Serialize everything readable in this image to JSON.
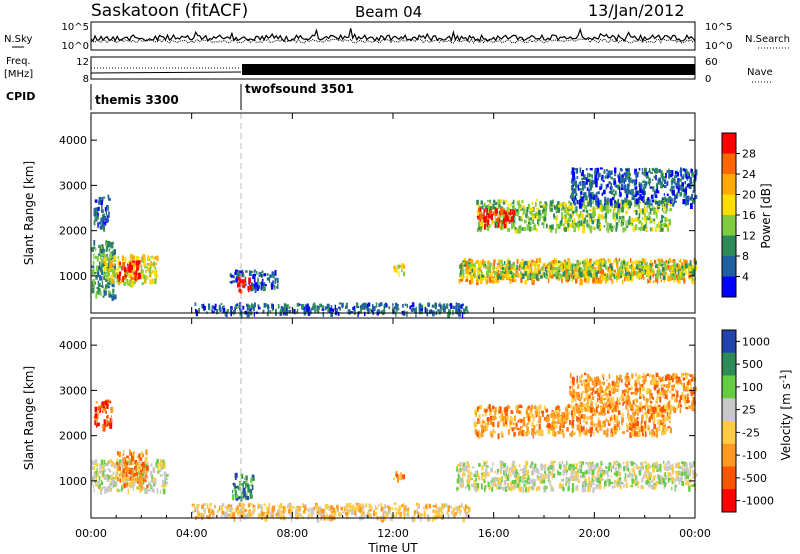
{
  "header": {
    "station": "Saskatoon (fitACF)",
    "beam": "Beam 04",
    "date": "13/Jan/2012"
  },
  "side_labels": {
    "nsky": "N.Sky",
    "freq": "Freq.",
    "freq_unit": "[MHz]",
    "cpid": "CPID",
    "nsearch": "N.Search",
    "nave": "Nave"
  },
  "chart_data": [
    {
      "type": "line",
      "panel": "noise",
      "ytick_labels": [
        "10^5",
        "10^0"
      ],
      "right_ytick_labels": [
        "10^5",
        "10^0"
      ],
      "x_ticks": [
        "00:00",
        "04:00",
        "08:00",
        "12:00",
        "16:00",
        "20:00",
        "00:00"
      ]
    },
    {
      "type": "line",
      "panel": "frequency",
      "ytick_labels": [
        "12",
        "8"
      ],
      "right_ytick_labels": [
        "60",
        "0"
      ],
      "series": [
        {
          "name": "Freq.",
          "x": [
            0,
            6,
            6.01,
            24
          ],
          "y": [
            10.0,
            10.2,
            11.0,
            11.0
          ]
        },
        {
          "name": "Nave",
          "x": [
            0,
            6,
            6.01,
            24
          ],
          "y": [
            22,
            22,
            48,
            48
          ]
        }
      ]
    },
    {
      "type": "table",
      "panel": "cpid",
      "segments": [
        {
          "start": 0.0,
          "end": 6.0,
          "label": "themis 3300"
        },
        {
          "start": 6.0,
          "end": 24.0,
          "label": "twofsound 3501"
        }
      ]
    },
    {
      "type": "heatmap",
      "panel": "power",
      "ylabel": "Slant Range [km]",
      "xlabel": "Time UT",
      "yticks": [
        1000,
        2000,
        3000,
        4000
      ],
      "ylim": [
        180,
        4600
      ],
      "xlim": [
        0,
        24
      ],
      "colorbar": {
        "label": "Power [dB]",
        "ticks": [
          "28",
          "24",
          "20",
          "16",
          "12",
          "8",
          "4"
        ],
        "colors": [
          "#ff0000",
          "#ff6600",
          "#ffaa00",
          "#ffdd00",
          "#80cc40",
          "#2e8b57",
          "#2060a0",
          "#0000ff"
        ]
      },
      "regions": [
        {
          "t0": 0.0,
          "t1": 0.9,
          "r0": 550,
          "r1": 1800,
          "level": 5
        },
        {
          "t0": 0.5,
          "t1": 2.6,
          "r0": 850,
          "r1": 1500,
          "level": 3
        },
        {
          "t0": 1.0,
          "t1": 1.9,
          "r0": 950,
          "r1": 1350,
          "level": 0
        },
        {
          "t0": 0.1,
          "t1": 0.7,
          "r0": 2100,
          "r1": 2800,
          "level": 6
        },
        {
          "t0": 5.5,
          "t1": 7.4,
          "r0": 750,
          "r1": 1150,
          "level": 6
        },
        {
          "t0": 5.8,
          "t1": 6.3,
          "r0": 700,
          "r1": 1000,
          "level": 0
        },
        {
          "t0": 12.0,
          "t1": 12.4,
          "r0": 1050,
          "r1": 1300,
          "level": 3
        },
        {
          "t0": 14.6,
          "t1": 24.0,
          "r0": 900,
          "r1": 1400,
          "level": 2
        },
        {
          "t0": 14.6,
          "t1": 24.0,
          "r0": 1000,
          "r1": 1350,
          "level": 4
        },
        {
          "t0": 15.3,
          "t1": 23.0,
          "r0": 2050,
          "r1": 2700,
          "level": 4
        },
        {
          "t0": 15.3,
          "t1": 16.8,
          "r0": 2150,
          "r1": 2500,
          "level": 0
        },
        {
          "t0": 19.0,
          "t1": 24.0,
          "r0": 2600,
          "r1": 3400,
          "level": 6
        },
        {
          "t0": 4.0,
          "t1": 15.0,
          "r0": 200,
          "r1": 420,
          "level": 6
        }
      ]
    },
    {
      "type": "heatmap",
      "panel": "velocity",
      "ylabel": "Slant Range [km]",
      "xlabel": "Time UT",
      "yticks": [
        1000,
        2000,
        3000,
        4000
      ],
      "ylim": [
        180,
        4600
      ],
      "xlim": [
        0,
        24
      ],
      "colorbar": {
        "label": "Velocity [m s^-1]",
        "ticks": [
          "1000",
          "500",
          "100",
          "25",
          "-25",
          "-100",
          "-500",
          "-1000"
        ],
        "colors": [
          "#2244aa",
          "#2e8b57",
          "#66cc44",
          "#c8c8c8",
          "#ffcc44",
          "#ff9922",
          "#ff5500",
          "#ff0000"
        ]
      },
      "regions": [
        {
          "t0": 0.0,
          "t1": 3.0,
          "r0": 800,
          "r1": 1500,
          "level": 3
        },
        {
          "t0": 1.0,
          "t1": 2.2,
          "r0": 900,
          "r1": 1700,
          "level": 5
        },
        {
          "t0": 0.1,
          "t1": 0.8,
          "r0": 2200,
          "r1": 2800,
          "level": 6
        },
        {
          "t0": 5.6,
          "t1": 6.4,
          "r0": 650,
          "r1": 1200,
          "level": 1
        },
        {
          "t0": 14.5,
          "t1": 24.0,
          "r0": 850,
          "r1": 1450,
          "level": 3
        },
        {
          "t0": 15.2,
          "t1": 23.0,
          "r0": 2050,
          "r1": 2700,
          "level": 5
        },
        {
          "t0": 19.0,
          "t1": 24.0,
          "r0": 2600,
          "r1": 3400,
          "level": 5
        },
        {
          "t0": 4.0,
          "t1": 15.0,
          "r0": 200,
          "r1": 520,
          "level": 4
        },
        {
          "t0": 12.0,
          "t1": 12.4,
          "r0": 1050,
          "r1": 1300,
          "level": 5
        }
      ]
    }
  ],
  "axis": {
    "x_ticks": [
      "00:00",
      "04:00",
      "08:00",
      "12:00",
      "16:00",
      "20:00",
      "00:00"
    ],
    "xlabel": "Time UT",
    "ylabel": "Slant Range [km]",
    "y_tick_labels": [
      "1000",
      "2000",
      "3000",
      "4000"
    ]
  },
  "colors": {
    "marker_line": "#bbbbbb",
    "axis": "#000000"
  }
}
